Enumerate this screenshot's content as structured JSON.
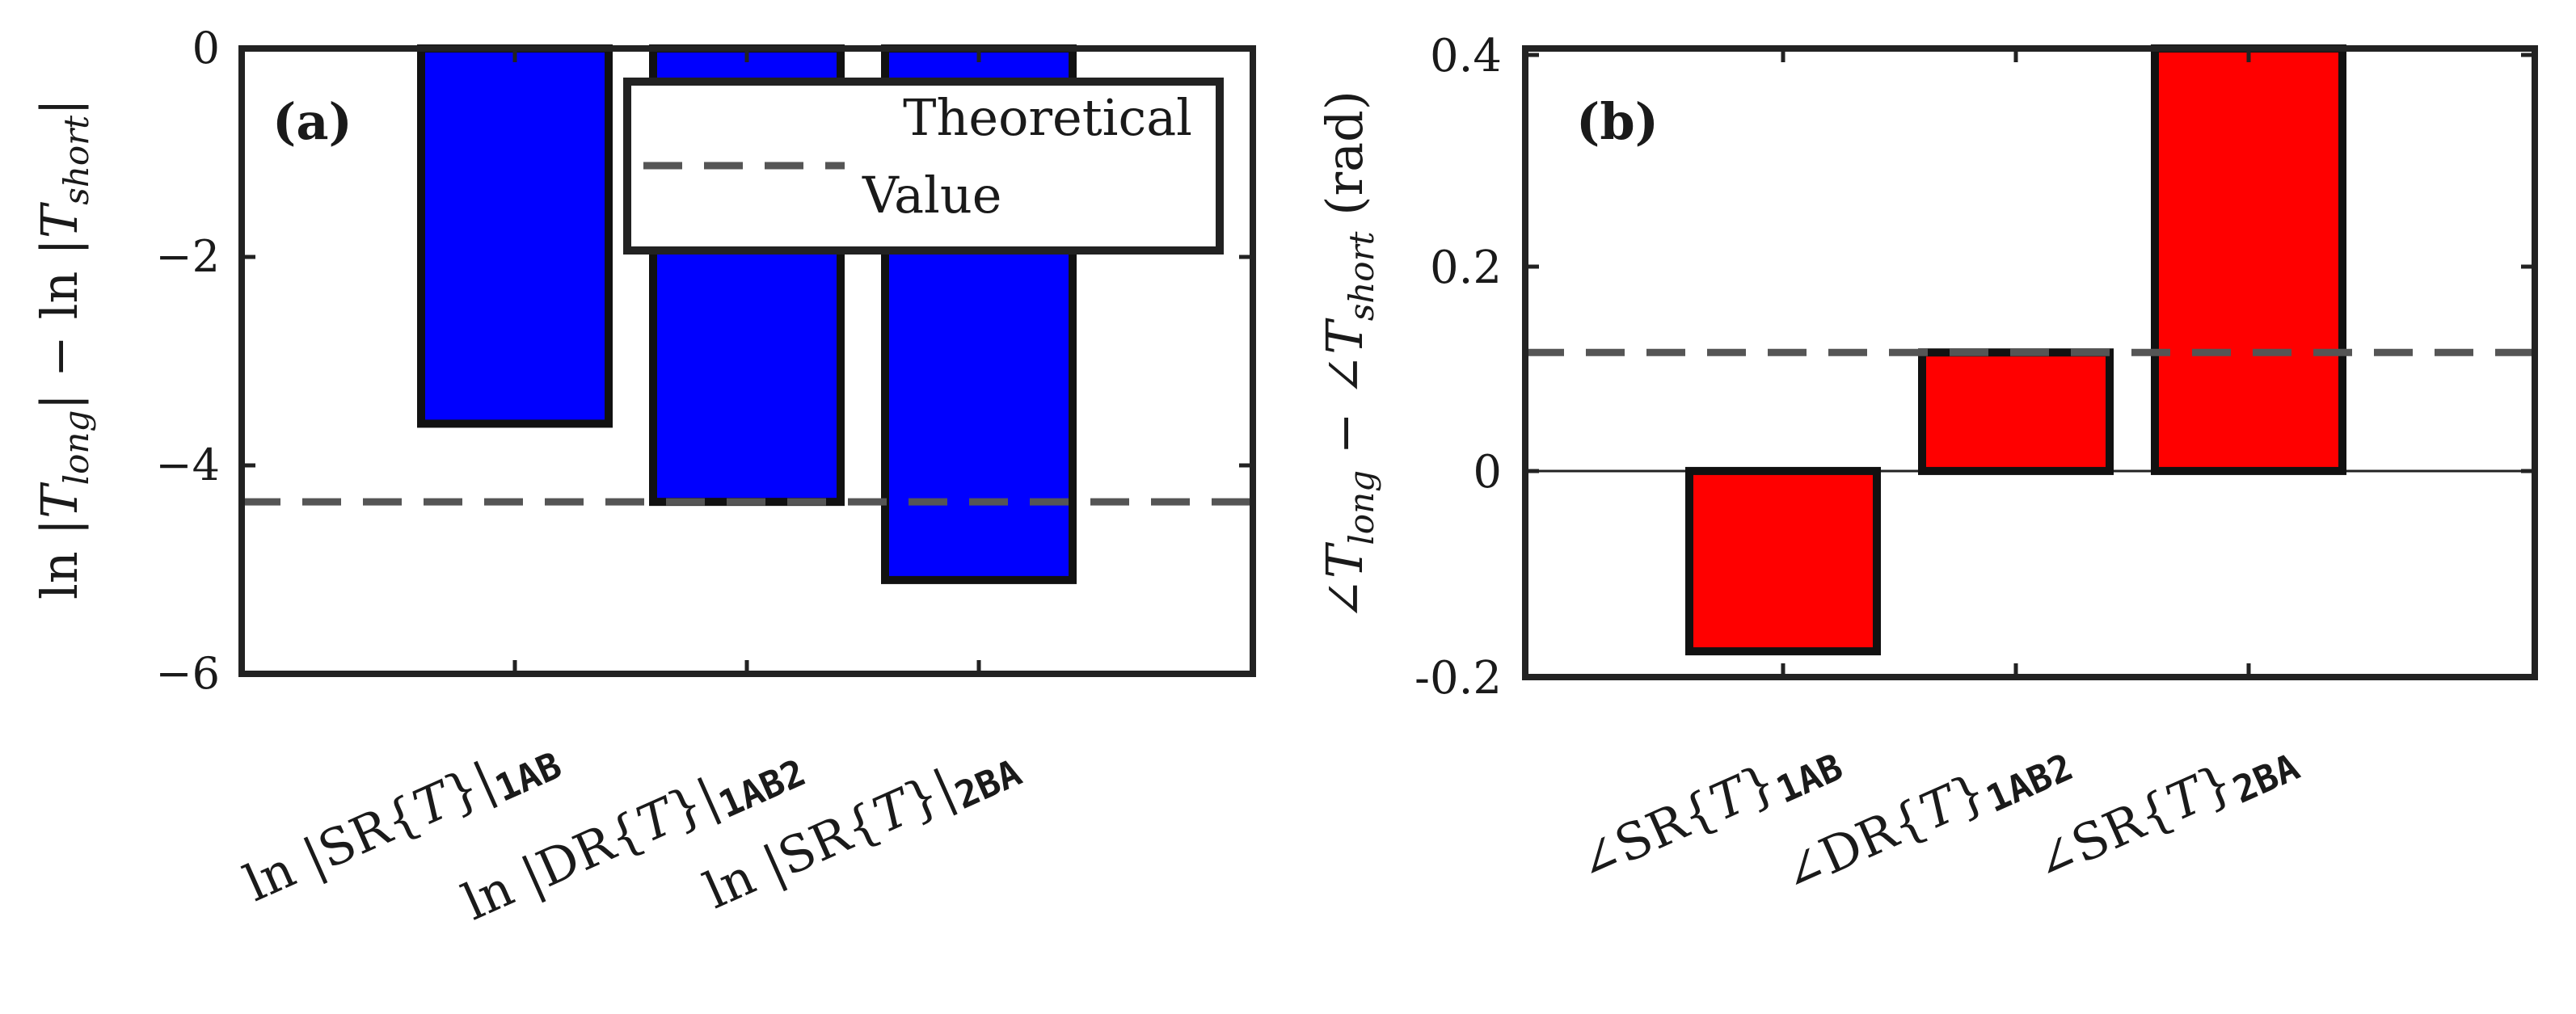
{
  "chart_data": [
    {
      "panel": "a",
      "type": "bar",
      "panel_label": "(a)",
      "categories": [
        "1AB",
        "1AB2",
        "2BA"
      ],
      "category_labels": [
        {
          "prefix": "ln |SR{",
          "var": "T",
          "close": "}|",
          "sub": "1AB"
        },
        {
          "prefix": "ln |DR{",
          "var": "T",
          "close": "}|",
          "sub": "1AB2"
        },
        {
          "prefix": "ln |SR{",
          "var": "T",
          "close": "}|",
          "sub": "2BA"
        }
      ],
      "values": [
        -3.6,
        -4.35,
        -5.1
      ],
      "bar_color": "#0000ff",
      "theoretical_value": -4.35,
      "ylim": [
        -6,
        0
      ],
      "yticks": [
        0,
        -2,
        -4,
        -6
      ],
      "ytick_labels": [
        "0",
        "−2",
        "−4",
        "−6"
      ],
      "ylabel": {
        "t1": "ln |",
        "v1": "T",
        "s1": "long",
        "t2": "| − ln |",
        "v2": "T",
        "s2": "short",
        "t3": "|"
      },
      "legend": {
        "line1": "Theoretical",
        "line2": "Value",
        "position": "top-right"
      }
    },
    {
      "panel": "b",
      "type": "bar",
      "panel_label": "(b)",
      "categories": [
        "1AB",
        "1AB2",
        "2BA"
      ],
      "category_labels": [
        {
          "prefix": "∠SR{",
          "var": "T",
          "close": "}",
          "sub": "1AB"
        },
        {
          "prefix": "∠DR{",
          "var": "T",
          "close": "}",
          "sub": "1AB2"
        },
        {
          "prefix": "∠SR{",
          "var": "T",
          "close": "}",
          "sub": "2BA"
        }
      ],
      "values": [
        -0.175,
        0.115,
        0.41
      ],
      "bar_color": "#ff0000",
      "theoretical_value": 0.115,
      "ylim": [
        -0.2,
        0.41
      ],
      "yticks": [
        0.4,
        0.2,
        0,
        -0.2
      ],
      "ytick_labels": [
        "0.4",
        "0.2",
        "0",
        "-0.2"
      ],
      "ylabel": {
        "t1": "∠",
        "v1": "T",
        "s1": "long",
        "t2": " − ∠",
        "v2": "T",
        "s2": "short",
        "t3": " (rad)"
      }
    }
  ]
}
